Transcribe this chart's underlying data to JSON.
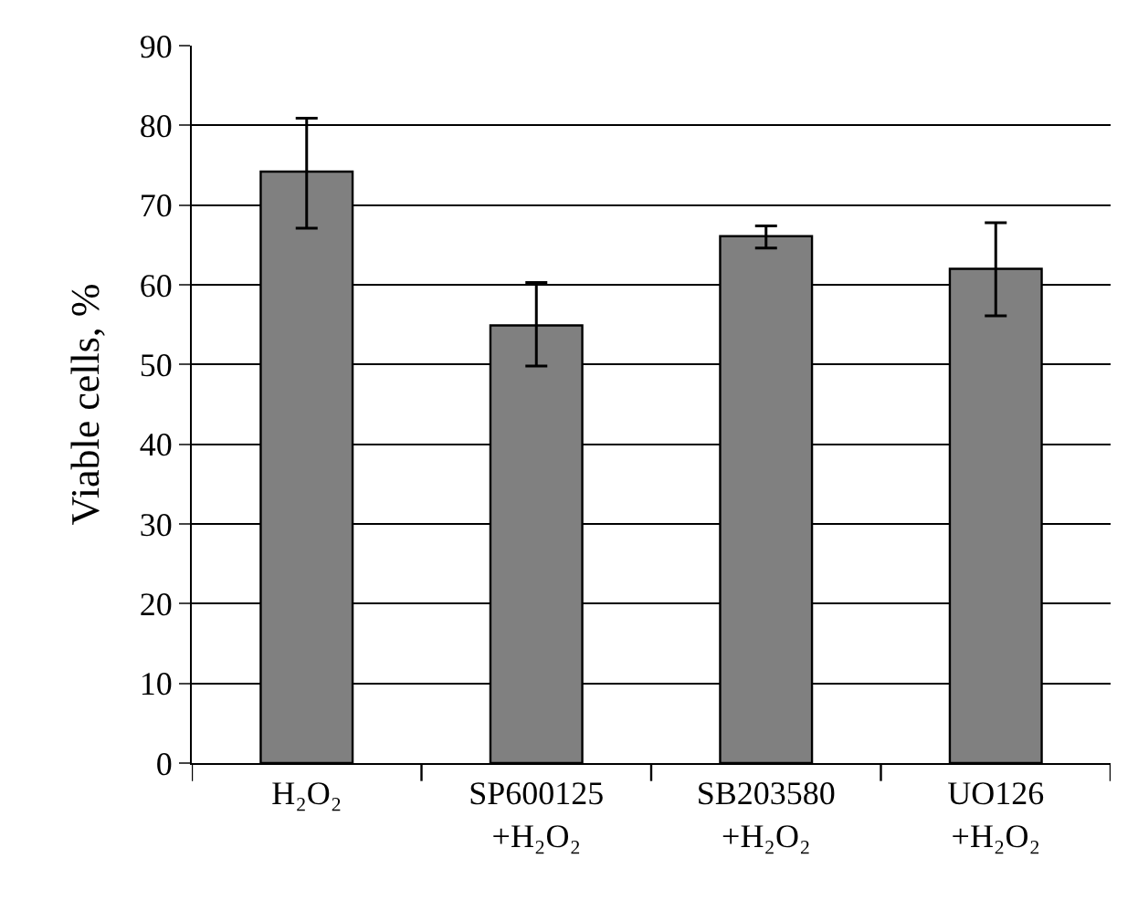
{
  "chart_data": {
    "type": "bar",
    "ylabel": "Viable cells, %",
    "categories": [
      "H₂O₂",
      "SP600125\n+H₂O₂",
      "SB203580\n+H₂O₂",
      "UO126\n+H₂O₂"
    ],
    "values": [
      74.2,
      54.9,
      66.1,
      62.0
    ],
    "errors": [
      [
        67.1,
        80.9
      ],
      [
        49.8,
        60.3
      ],
      [
        64.6,
        67.4
      ],
      [
        56.1,
        67.8
      ]
    ],
    "color": "#808080",
    "ylim": [
      0,
      90
    ],
    "yticks": [
      0,
      10,
      20,
      30,
      40,
      50,
      60,
      70,
      80,
      90
    ],
    "grid": "y"
  }
}
